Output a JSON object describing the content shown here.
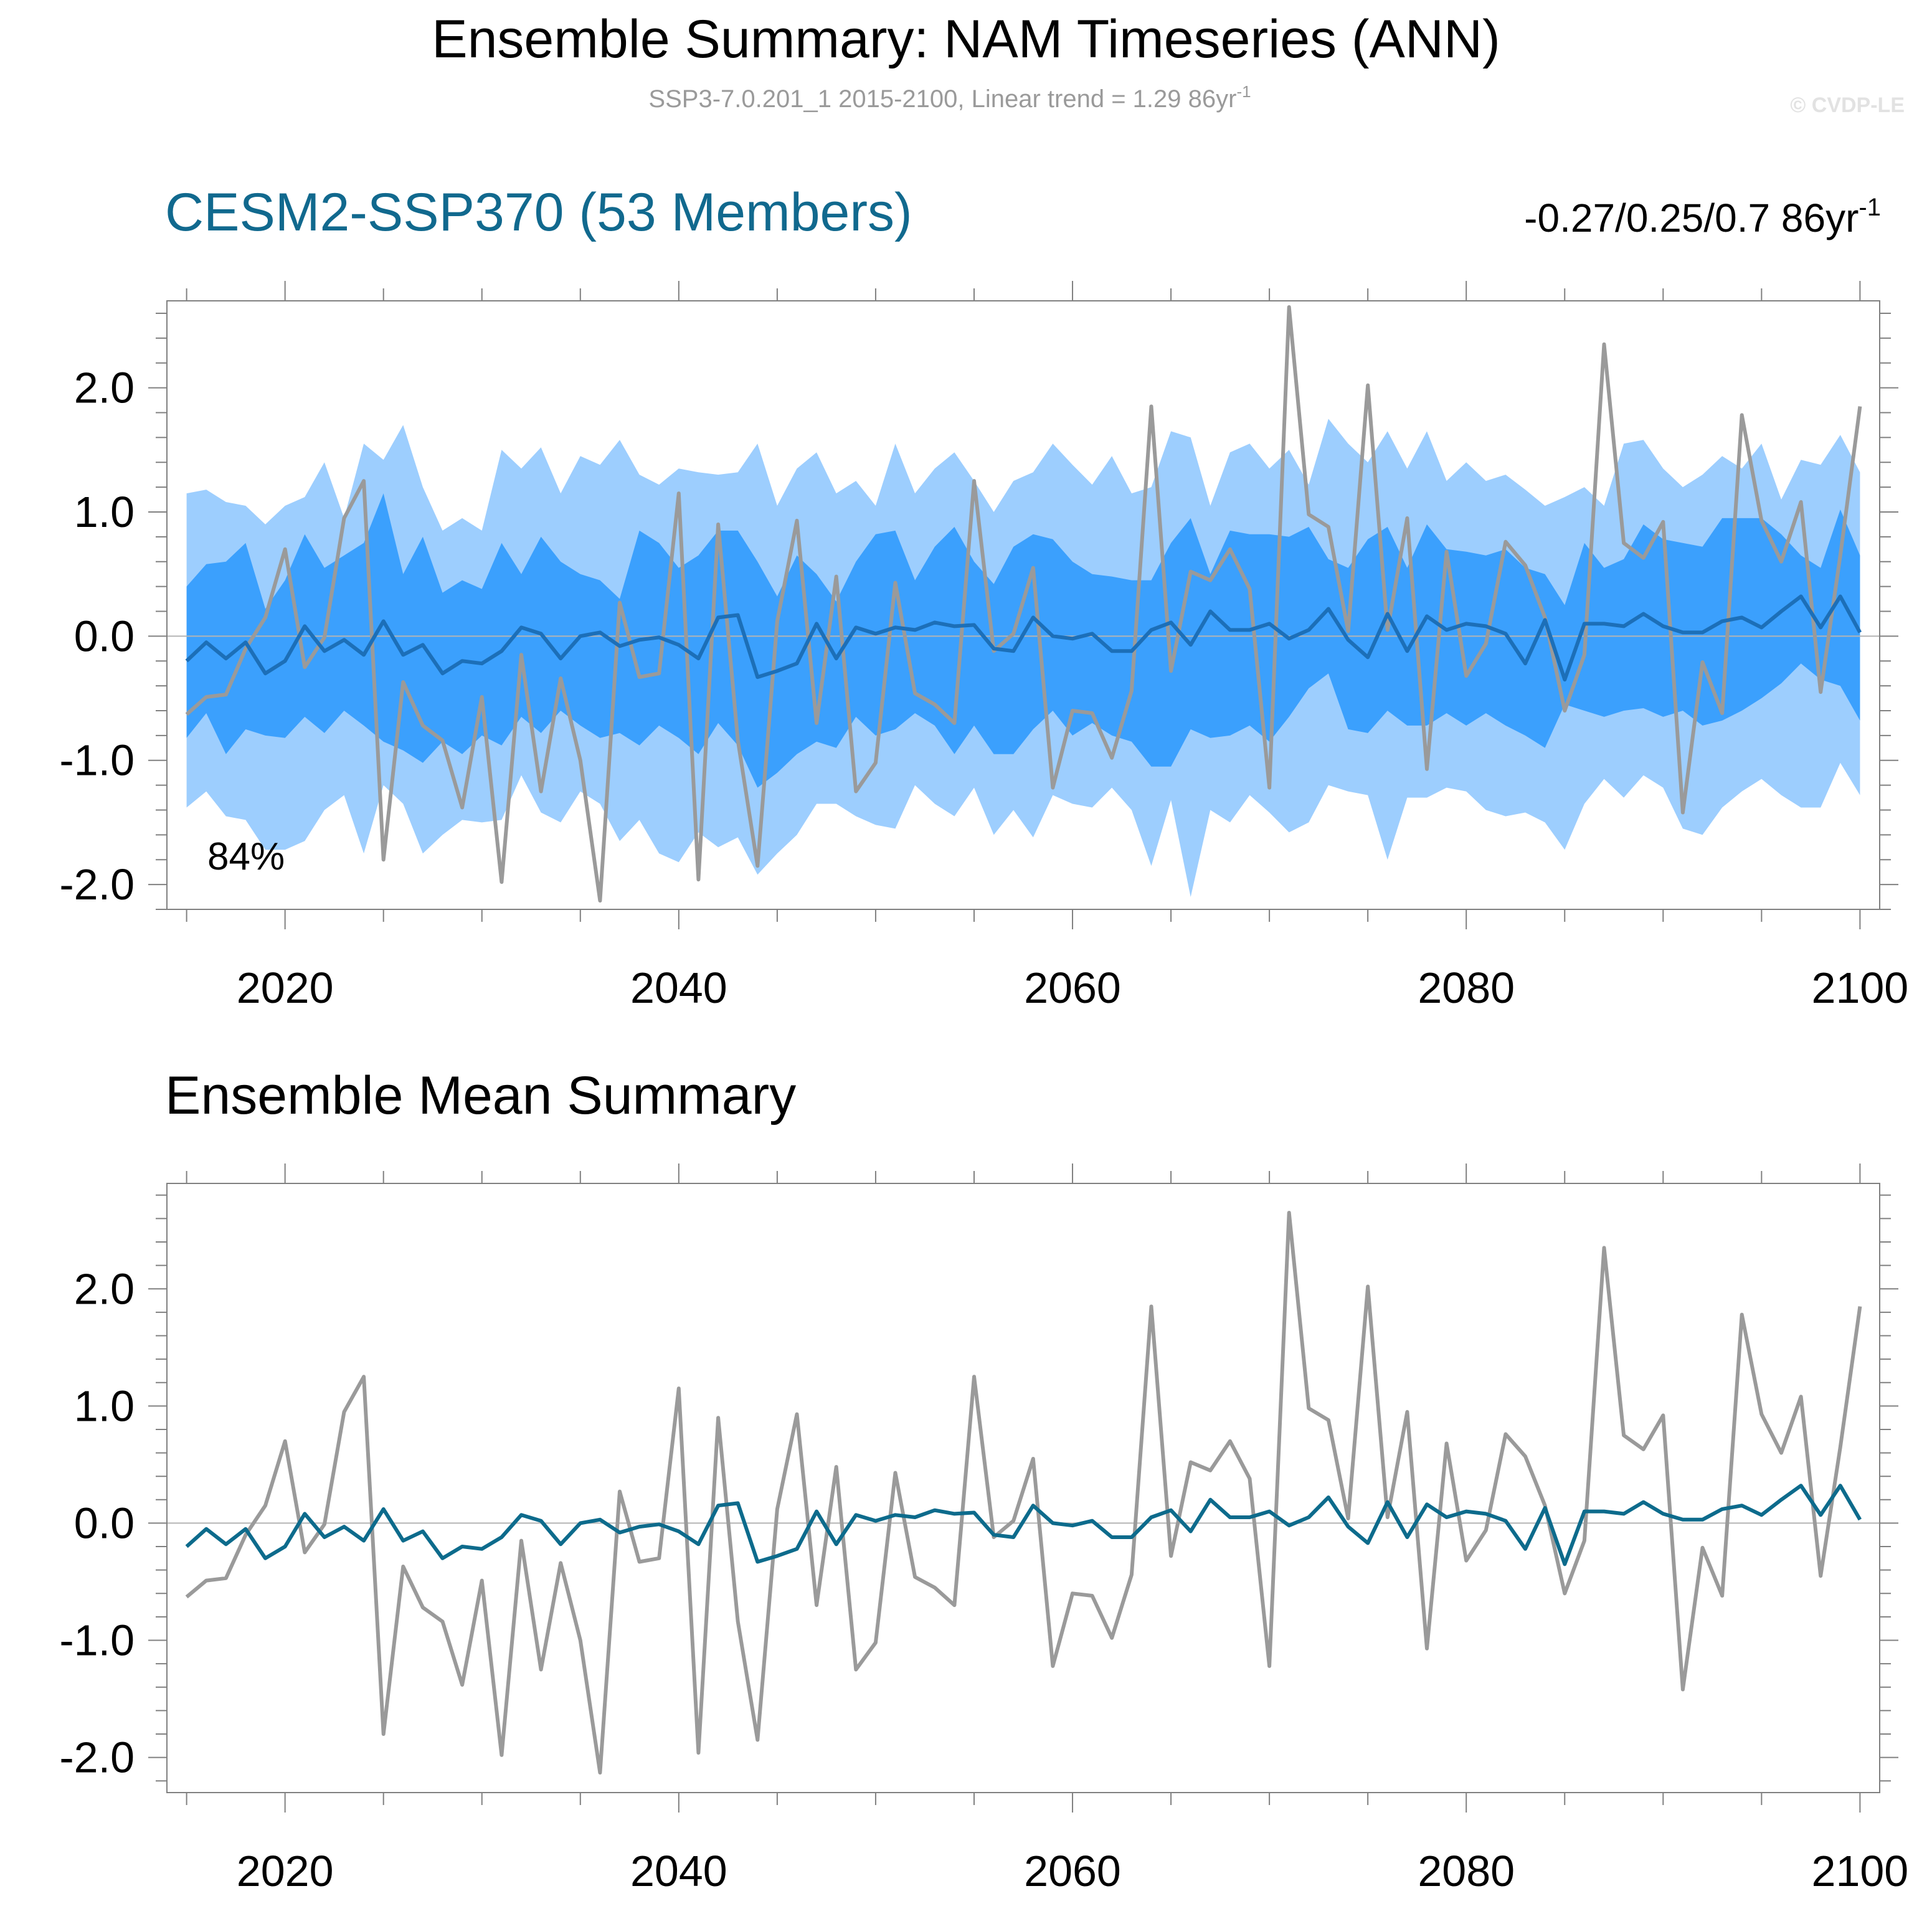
{
  "figure": {
    "title": "Ensemble Summary: NAM Timeseries (ANN)",
    "subtitle": "SSP3-7.0.201_1 2015-2100, Linear trend = 1.29 86yr",
    "subtitle_sup": "-1",
    "copyright": "© CVDP-LE"
  },
  "colors": {
    "band_outer": "#9dcefe",
    "band_inner": "#3ba0fd",
    "ensemble_mean_top": "#1c6fb8",
    "ensemble_mean_bottom": "#0d6b8c",
    "observation": "#9a9a9a",
    "model_title": "#11698e",
    "frame": "#808080",
    "zero_line": "#b4b4b4"
  },
  "chart_data": [
    {
      "type": "area",
      "panel": "top",
      "title": "CESM2-SSP370 (53 Members)",
      "trend_label": "-0.27/0.25/0.7 86yr",
      "trend_label_sup": "-1",
      "annotation": "84%",
      "xlabel": "",
      "ylabel": "",
      "xlim": [
        2014,
        2101
      ],
      "ylim": [
        -2.2,
        2.7
      ],
      "xticks": [
        2020,
        2040,
        2060,
        2080,
        2100
      ],
      "xtick_labels": [
        "2020",
        "2040",
        "2060",
        "2080",
        "2100"
      ],
      "yticks": [
        -2.0,
        -1.0,
        0.0,
        1.0,
        2.0
      ],
      "ytick_labels": [
        "-2.0",
        "-1.0",
        "0.0",
        "1.0",
        "2.0"
      ],
      "grid": false,
      "x": [
        2015,
        2016,
        2017,
        2018,
        2019,
        2020,
        2021,
        2022,
        2023,
        2024,
        2025,
        2026,
        2027,
        2028,
        2029,
        2030,
        2031,
        2032,
        2033,
        2034,
        2035,
        2036,
        2037,
        2038,
        2039,
        2040,
        2041,
        2042,
        2043,
        2044,
        2045,
        2046,
        2047,
        2048,
        2049,
        2050,
        2051,
        2052,
        2053,
        2054,
        2055,
        2056,
        2057,
        2058,
        2059,
        2060,
        2061,
        2062,
        2063,
        2064,
        2065,
        2066,
        2067,
        2068,
        2069,
        2070,
        2071,
        2072,
        2073,
        2074,
        2075,
        2076,
        2077,
        2078,
        2079,
        2080,
        2081,
        2082,
        2083,
        2084,
        2085,
        2086,
        2087,
        2088,
        2089,
        2090,
        2091,
        2092,
        2093,
        2094,
        2095,
        2096,
        2097,
        2098,
        2099,
        2100
      ],
      "series": [
        {
          "name": "outer band upper",
          "role": "band_outer_upper",
          "values": [
            1.15,
            1.18,
            1.08,
            1.05,
            0.9,
            1.05,
            1.12,
            1.4,
            0.95,
            1.55,
            1.42,
            1.7,
            1.2,
            0.85,
            0.95,
            0.85,
            1.5,
            1.35,
            1.52,
            1.15,
            1.45,
            1.38,
            1.58,
            1.3,
            1.22,
            1.35,
            1.32,
            1.3,
            1.32,
            1.55,
            1.05,
            1.35,
            1.48,
            1.15,
            1.25,
            1.05,
            1.55,
            1.15,
            1.35,
            1.48,
            1.25,
            1.0,
            1.25,
            1.32,
            1.55,
            1.38,
            1.22,
            1.45,
            1.15,
            1.2,
            1.65,
            1.6,
            1.05,
            1.48,
            1.55,
            1.35,
            1.5,
            1.22,
            1.75,
            1.55,
            1.4,
            1.65,
            1.35,
            1.65,
            1.25,
            1.4,
            1.25,
            1.3,
            1.18,
            1.05,
            1.12,
            1.2,
            1.05,
            1.55,
            1.58,
            1.35,
            1.2,
            1.3,
            1.45,
            1.35,
            1.55,
            1.1,
            1.42,
            1.38,
            1.62,
            1.32
          ]
        },
        {
          "name": "inner band upper",
          "role": "band_inner_upper",
          "values": [
            0.4,
            0.58,
            0.6,
            0.75,
            0.22,
            0.45,
            0.82,
            0.55,
            0.65,
            0.75,
            1.15,
            0.5,
            0.8,
            0.35,
            0.45,
            0.38,
            0.75,
            0.5,
            0.8,
            0.6,
            0.5,
            0.45,
            0.3,
            0.85,
            0.75,
            0.55,
            0.65,
            0.85,
            0.85,
            0.6,
            0.32,
            0.65,
            0.5,
            0.28,
            0.6,
            0.82,
            0.85,
            0.45,
            0.72,
            0.88,
            0.6,
            0.42,
            0.72,
            0.82,
            0.78,
            0.6,
            0.5,
            0.48,
            0.45,
            0.45,
            0.75,
            0.95,
            0.5,
            0.85,
            0.82,
            0.82,
            0.8,
            0.88,
            0.62,
            0.55,
            0.78,
            0.88,
            0.55,
            0.9,
            0.7,
            0.68,
            0.65,
            0.7,
            0.55,
            0.5,
            0.25,
            0.75,
            0.55,
            0.62,
            0.9,
            0.78,
            0.75,
            0.72,
            0.95,
            0.95,
            0.95,
            0.82,
            0.65,
            0.55,
            1.02,
            0.65
          ]
        },
        {
          "name": "inner band lower",
          "role": "band_inner_lower",
          "values": [
            -0.82,
            -0.62,
            -0.95,
            -0.75,
            -0.8,
            -0.82,
            -0.65,
            -0.78,
            -0.6,
            -0.72,
            -0.85,
            -0.92,
            -1.02,
            -0.85,
            -0.95,
            -0.8,
            -0.88,
            -0.65,
            -0.78,
            -0.6,
            -0.72,
            -0.82,
            -0.78,
            -0.88,
            -0.72,
            -0.82,
            -0.95,
            -0.7,
            -0.88,
            -1.22,
            -1.1,
            -0.95,
            -0.85,
            -0.9,
            -0.65,
            -0.8,
            -0.75,
            -0.62,
            -0.72,
            -0.95,
            -0.72,
            -0.95,
            -0.95,
            -0.75,
            -0.6,
            -0.8,
            -0.7,
            -0.8,
            -0.85,
            -1.05,
            -1.05,
            -0.75,
            -0.82,
            -0.8,
            -0.72,
            -0.85,
            -0.65,
            -0.42,
            -0.3,
            -0.75,
            -0.78,
            -0.6,
            -0.72,
            -0.72,
            -0.62,
            -0.72,
            -0.62,
            -0.72,
            -0.8,
            -0.9,
            -0.55,
            -0.6,
            -0.65,
            -0.6,
            -0.58,
            -0.65,
            -0.6,
            -0.72,
            -0.68,
            -0.6,
            -0.5,
            -0.38,
            -0.22,
            -0.35,
            -0.4,
            -0.68
          ]
        },
        {
          "name": "outer band lower",
          "role": "band_outer_lower",
          "values": [
            -1.38,
            -1.25,
            -1.45,
            -1.48,
            -1.72,
            -1.72,
            -1.65,
            -1.4,
            -1.28,
            -1.75,
            -1.2,
            -1.35,
            -1.75,
            -1.6,
            -1.48,
            -1.5,
            -1.48,
            -1.12,
            -1.42,
            -1.5,
            -1.25,
            -1.35,
            -1.65,
            -1.48,
            -1.75,
            -1.82,
            -1.58,
            -1.7,
            -1.62,
            -1.92,
            -1.75,
            -1.6,
            -1.35,
            -1.35,
            -1.45,
            -1.52,
            -1.55,
            -1.2,
            -1.35,
            -1.45,
            -1.22,
            -1.6,
            -1.4,
            -1.62,
            -1.28,
            -1.35,
            -1.38,
            -1.22,
            -1.4,
            -1.85,
            -1.32,
            -2.1,
            -1.4,
            -1.5,
            -1.28,
            -1.42,
            -1.58,
            -1.5,
            -1.2,
            -1.25,
            -1.28,
            -1.8,
            -1.3,
            -1.3,
            -1.22,
            -1.25,
            -1.4,
            -1.45,
            -1.42,
            -1.5,
            -1.72,
            -1.35,
            -1.15,
            -1.3,
            -1.12,
            -1.22,
            -1.55,
            -1.6,
            -1.38,
            -1.25,
            -1.15,
            -1.28,
            -1.38,
            -1.38,
            -1.02,
            -1.28
          ]
        },
        {
          "name": "Ensemble mean",
          "role": "ensemble_mean",
          "values": [
            -0.2,
            -0.05,
            -0.18,
            -0.05,
            -0.3,
            -0.2,
            0.08,
            -0.12,
            -0.03,
            -0.15,
            0.12,
            -0.15,
            -0.07,
            -0.3,
            -0.2,
            -0.22,
            -0.12,
            0.07,
            0.02,
            -0.18,
            0.0,
            0.03,
            -0.08,
            -0.03,
            -0.01,
            -0.07,
            -0.18,
            0.15,
            0.17,
            -0.33,
            -0.28,
            -0.22,
            0.1,
            -0.18,
            0.07,
            0.02,
            0.07,
            0.05,
            0.11,
            0.08,
            0.09,
            -0.1,
            -0.12,
            0.15,
            0.0,
            -0.02,
            0.02,
            -0.12,
            -0.12,
            0.05,
            0.11,
            -0.07,
            0.2,
            0.05,
            0.05,
            0.1,
            -0.02,
            0.05,
            0.22,
            -0.03,
            -0.17,
            0.18,
            -0.12,
            0.16,
            0.05,
            0.1,
            0.08,
            0.02,
            -0.22,
            0.13,
            -0.35,
            0.1,
            0.1,
            0.08,
            0.18,
            0.08,
            0.03,
            0.03,
            0.12,
            0.15,
            0.07,
            0.2,
            0.32,
            0.07,
            0.32,
            0.03
          ]
        },
        {
          "name": "Observations",
          "role": "observation",
          "values": [
            -0.63,
            -0.49,
            -0.47,
            -0.1,
            0.15,
            0.7,
            -0.25,
            -0.01,
            0.95,
            1.25,
            -1.8,
            -0.37,
            -0.72,
            -0.84,
            -1.38,
            -0.49,
            -1.98,
            -0.15,
            -1.25,
            -0.34,
            -1.0,
            -2.13,
            0.27,
            -0.33,
            -0.3,
            1.15,
            -1.96,
            0.9,
            -0.84,
            -1.85,
            0.12,
            0.93,
            -0.7,
            0.48,
            -1.25,
            -1.02,
            0.43,
            -0.46,
            -0.55,
            -0.7,
            1.25,
            -0.12,
            0.02,
            0.55,
            -1.22,
            -0.6,
            -0.62,
            -0.98,
            -0.44,
            1.85,
            -0.28,
            0.52,
            0.45,
            0.7,
            0.38,
            -1.22,
            2.65,
            0.98,
            0.88,
            0.04,
            2.02,
            0.05,
            0.95,
            -1.07,
            0.68,
            -0.32,
            -0.06,
            0.76,
            0.57,
            0.15,
            -0.6,
            -0.15,
            2.35,
            0.75,
            0.63,
            0.92,
            -1.42,
            -0.21,
            -0.62,
            1.78,
            0.93,
            0.6,
            1.08,
            -0.45,
            0.65,
            1.85
          ]
        }
      ]
    },
    {
      "type": "line",
      "panel": "bottom",
      "title": "Ensemble Mean Summary",
      "xlabel": "",
      "ylabel": "",
      "xlim": [
        2014,
        2101
      ],
      "ylim": [
        -2.3,
        2.9
      ],
      "xticks": [
        2020,
        2040,
        2060,
        2080,
        2100
      ],
      "xtick_labels": [
        "2020",
        "2040",
        "2060",
        "2080",
        "2100"
      ],
      "yticks": [
        -2.0,
        -1.0,
        0.0,
        1.0,
        2.0
      ],
      "ytick_labels": [
        "-2.0",
        "-1.0",
        "0.0",
        "1.0",
        "2.0"
      ],
      "grid": false,
      "x": [
        2015,
        2016,
        2017,
        2018,
        2019,
        2020,
        2021,
        2022,
        2023,
        2024,
        2025,
        2026,
        2027,
        2028,
        2029,
        2030,
        2031,
        2032,
        2033,
        2034,
        2035,
        2036,
        2037,
        2038,
        2039,
        2040,
        2041,
        2042,
        2043,
        2044,
        2045,
        2046,
        2047,
        2048,
        2049,
        2050,
        2051,
        2052,
        2053,
        2054,
        2055,
        2056,
        2057,
        2058,
        2059,
        2060,
        2061,
        2062,
        2063,
        2064,
        2065,
        2066,
        2067,
        2068,
        2069,
        2070,
        2071,
        2072,
        2073,
        2074,
        2075,
        2076,
        2077,
        2078,
        2079,
        2080,
        2081,
        2082,
        2083,
        2084,
        2085,
        2086,
        2087,
        2088,
        2089,
        2090,
        2091,
        2092,
        2093,
        2094,
        2095,
        2096,
        2097,
        2098,
        2099,
        2100
      ],
      "series": [
        {
          "name": "Observations",
          "role": "observation",
          "values": [
            -0.63,
            -0.49,
            -0.47,
            -0.1,
            0.15,
            0.7,
            -0.25,
            -0.01,
            0.95,
            1.25,
            -1.8,
            -0.37,
            -0.72,
            -0.84,
            -1.38,
            -0.49,
            -1.98,
            -0.15,
            -1.25,
            -0.34,
            -1.0,
            -2.13,
            0.27,
            -0.33,
            -0.3,
            1.15,
            -1.96,
            0.9,
            -0.84,
            -1.85,
            0.12,
            0.93,
            -0.7,
            0.48,
            -1.25,
            -1.02,
            0.43,
            -0.46,
            -0.55,
            -0.7,
            1.25,
            -0.12,
            0.02,
            0.55,
            -1.22,
            -0.6,
            -0.62,
            -0.98,
            -0.44,
            1.85,
            -0.28,
            0.52,
            0.45,
            0.7,
            0.38,
            -1.22,
            2.65,
            0.98,
            0.88,
            0.04,
            2.02,
            0.05,
            0.95,
            -1.07,
            0.68,
            -0.32,
            -0.06,
            0.76,
            0.57,
            0.15,
            -0.6,
            -0.15,
            2.35,
            0.75,
            0.63,
            0.92,
            -1.42,
            -0.21,
            -0.62,
            1.78,
            0.93,
            0.6,
            1.08,
            -0.45,
            0.65,
            1.85
          ]
        },
        {
          "name": "Ensemble mean",
          "role": "ensemble_mean",
          "values": [
            -0.2,
            -0.05,
            -0.18,
            -0.05,
            -0.3,
            -0.2,
            0.08,
            -0.12,
            -0.03,
            -0.15,
            0.12,
            -0.15,
            -0.07,
            -0.3,
            -0.2,
            -0.22,
            -0.12,
            0.07,
            0.02,
            -0.18,
            0.0,
            0.03,
            -0.08,
            -0.03,
            -0.01,
            -0.07,
            -0.18,
            0.15,
            0.17,
            -0.33,
            -0.28,
            -0.22,
            0.1,
            -0.18,
            0.07,
            0.02,
            0.07,
            0.05,
            0.11,
            0.08,
            0.09,
            -0.1,
            -0.12,
            0.15,
            0.0,
            -0.02,
            0.02,
            -0.12,
            -0.12,
            0.05,
            0.11,
            -0.07,
            0.2,
            0.05,
            0.05,
            0.1,
            -0.02,
            0.05,
            0.22,
            -0.03,
            -0.17,
            0.18,
            -0.12,
            0.16,
            0.05,
            0.1,
            0.08,
            0.02,
            -0.22,
            0.13,
            -0.35,
            0.1,
            0.1,
            0.08,
            0.18,
            0.08,
            0.03,
            0.03,
            0.12,
            0.15,
            0.07,
            0.2,
            0.32,
            0.07,
            0.32,
            0.03
          ]
        }
      ]
    }
  ]
}
